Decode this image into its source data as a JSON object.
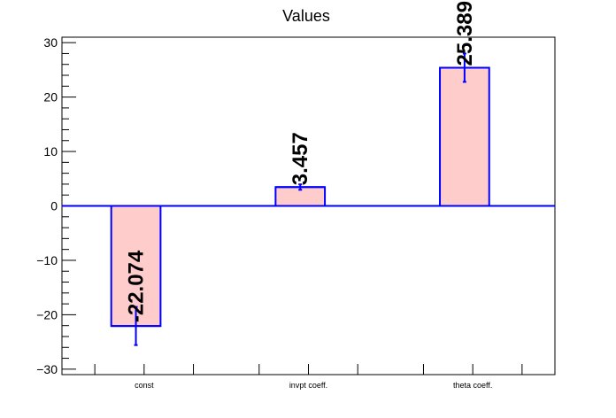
{
  "chart_data": {
    "type": "bar",
    "title": "Values",
    "xlabel": "",
    "ylabel": "",
    "categories": [
      "const",
      "invpt coeff.",
      "theta coeff."
    ],
    "values": [
      -22.074,
      3.457,
      25.389
    ],
    "errors": [
      3.5,
      0.5,
      2.6
    ],
    "value_labels": [
      "-22.074",
      "3.457",
      "25.389"
    ],
    "ylim": [
      -31,
      31
    ],
    "yticks": [
      -30,
      -20,
      -10,
      0,
      10,
      20,
      30
    ],
    "ytick_labels": [
      "−30",
      "−20",
      "−10",
      "0",
      "10",
      "20",
      "30"
    ],
    "grid": false,
    "colors": {
      "bar_fill": "#ffcccc",
      "bar_edge": "#0000ff",
      "zero_line": "#0000ff",
      "axis": "#000000"
    }
  }
}
